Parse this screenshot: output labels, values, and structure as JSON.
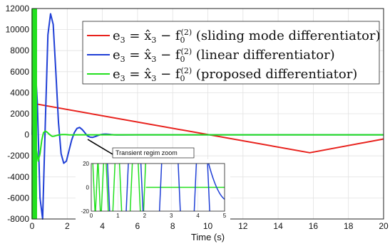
{
  "chart_data": [
    {
      "type": "line",
      "xlabel": "Time (s)",
      "ylabel": "",
      "xlim": [
        0,
        20
      ],
      "ylim": [
        -8000,
        12000
      ],
      "grid": true,
      "x_ticks": [
        0,
        2,
        4,
        6,
        8,
        10,
        12,
        14,
        16,
        18,
        20
      ],
      "y_ticks": [
        -8000,
        -6000,
        -4000,
        -2000,
        0,
        2000,
        4000,
        6000,
        8000,
        10000,
        12000
      ],
      "legend_position": "top-right",
      "series": [
        {
          "name": "e3 = x̂3 − f0(2) (sliding mode differentiator)",
          "legend": {
            "lhs": "e",
            "lhs_sub": "3",
            "rhs": "x̂",
            "rhs_sub": "3",
            "f": "f",
            "f_sub": "0",
            "f_sup": "(2)",
            "desc": "(sliding mode differentiator)"
          },
          "color": "#e8211c",
          "x": [
            0,
            15.8,
            20
          ],
          "y": [
            3000,
            -1700,
            -400
          ]
        },
        {
          "name": "e3 = x̂3 − f0(2) (linear differentiator)",
          "legend": {
            "lhs": "e",
            "lhs_sub": "3",
            "rhs": "x̂",
            "rhs_sub": "3",
            "f": "f",
            "f_sub": "0",
            "f_sup": "(2)",
            "desc": "(linear differentiator)"
          },
          "color": "#1f3fd6",
          "x": [
            0,
            0.15,
            0.3,
            0.45,
            0.6,
            0.75,
            0.9,
            1.05,
            1.2,
            1.35,
            1.5,
            1.65,
            1.8,
            1.95,
            2.1,
            2.25,
            2.4,
            2.55,
            2.7,
            2.85,
            3.0,
            3.15,
            3.3,
            3.45,
            3.6,
            3.75,
            3.9,
            4.05,
            4.2,
            4.35,
            4.5,
            4.65,
            4.8,
            4.95,
            5.1,
            6,
            8,
            10,
            12,
            14,
            16,
            18,
            20
          ],
          "y": [
            0,
            7500,
            3000,
            -6000,
            -8000,
            1000,
            9500,
            11500,
            10500,
            6000,
            1200,
            -1800,
            -2700,
            -2500,
            -1500,
            -500,
            200,
            600,
            700,
            500,
            200,
            -100,
            -220,
            -240,
            -170,
            -70,
            20,
            60,
            70,
            50,
            20,
            0,
            -10,
            -15,
            -10,
            0,
            0,
            0,
            0,
            0,
            0,
            0,
            0
          ]
        },
        {
          "name": "e3 = x̂3 − f0(2) (proposed differentiator)",
          "legend": {
            "lhs": "e",
            "lhs_sub": "3",
            "rhs": "x̂",
            "rhs_sub": "3",
            "f": "f",
            "f_sub": "0",
            "f_sup": "(2)",
            "desc": "(proposed differentiator)"
          },
          "color": "#22e01e",
          "x": [
            0.25,
            0.35,
            0.45,
            0.55,
            0.65,
            0.75,
            0.85,
            0.95,
            1.05,
            1.15,
            1.25,
            1.35,
            1.5,
            1.7,
            1.9,
            2.1,
            2.3,
            2.5,
            3,
            4,
            6,
            8,
            10,
            12,
            14,
            16,
            18,
            20
          ],
          "y": [
            -1500,
            -2500,
            -1800,
            -500,
            200,
            350,
            250,
            100,
            -50,
            -150,
            -130,
            -80,
            -20,
            30,
            20,
            0,
            -10,
            0,
            0,
            0,
            0,
            0,
            0,
            0,
            0,
            0,
            0,
            0
          ],
          "oscillation_band": {
            "x_from": 0,
            "x_to": 0.25,
            "y_min": -8000,
            "y_max": 12000
          }
        }
      ]
    },
    {
      "type": "line",
      "title": "",
      "annotation": "Transient regim zoom",
      "xlim": [
        0,
        5
      ],
      "ylim": [
        -20,
        20
      ],
      "x_ticks": [
        0,
        1,
        2,
        3,
        4,
        5
      ],
      "y_ticks": [
        -20,
        0,
        20
      ],
      "grid": true,
      "series": [
        {
          "color": "#22e01e",
          "name": "",
          "x_crossings": [
            0.1,
            0.2,
            0.3,
            0.42,
            0.6,
            0.85,
            1.1,
            1.5,
            1.8,
            2.0
          ],
          "settle_x": 2.05,
          "settle_value": 0
        },
        {
          "color": "#1f3fd6",
          "name": "",
          "x_crossings": [
            0.65,
            1.35,
            1.9,
            2.6,
            3.3,
            3.9,
            4.4
          ],
          "end_x": 5,
          "end_value": -10
        }
      ]
    }
  ]
}
